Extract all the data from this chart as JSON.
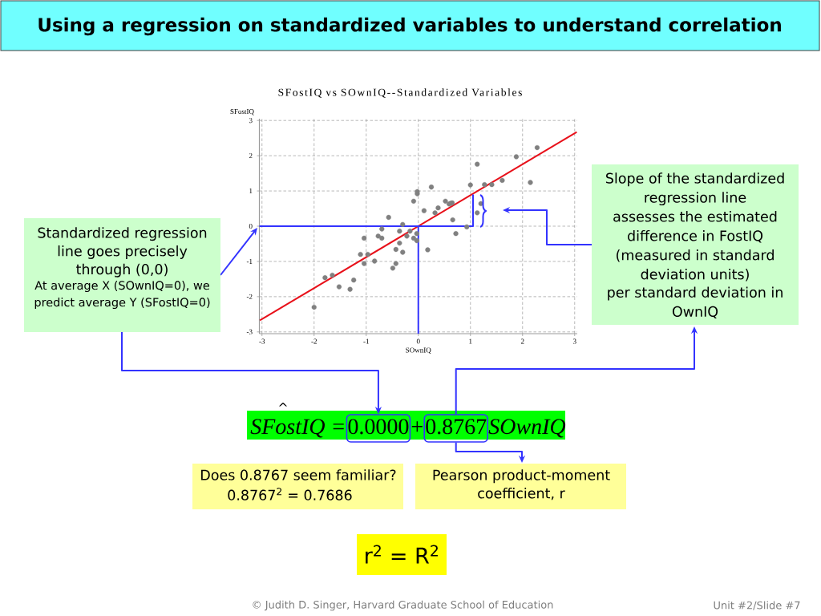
{
  "chart_data": {
    "type": "scatter",
    "title": "Using a regression on standardized variables to understand correlation",
    "subtitle": "SFostIQ vs SOwnIQ--Standardized Variables",
    "xlabel": "SOwnIQ",
    "ylabel": "SFostIQ",
    "series": [
      {
        "type": "scatter",
        "color": "#808080",
        "marker": "circle",
        "x": [
          -2.0,
          -1.79,
          -1.65,
          -1.52,
          -1.31,
          -1.24,
          -1.11,
          -1.04,
          -1.04,
          -0.97,
          -0.84,
          -0.77,
          -0.7,
          -0.7,
          -0.57,
          -0.49,
          -0.43,
          -0.43,
          -0.36,
          -0.36,
          -0.3,
          -0.3,
          -0.22,
          -0.16,
          -0.09,
          -0.09,
          -0.03,
          -0.03,
          -0.02,
          -0.02,
          0.11,
          0.18,
          0.25,
          0.32,
          0.38,
          0.52,
          0.59,
          0.62,
          0.65,
          0.66,
          0.72,
          0.93,
          1.0,
          1.13,
          1.13,
          1.2,
          1.27,
          1.41,
          1.61,
          1.88,
          2.15,
          2.28
        ],
        "values": [
          -2.3,
          -1.46,
          -1.39,
          -1.72,
          -1.79,
          -1.53,
          -0.8,
          -0.34,
          -1.06,
          -0.8,
          -0.99,
          -0.28,
          -0.08,
          -0.34,
          0.25,
          -1.19,
          -0.66,
          -1.06,
          -0.14,
          -0.48,
          -0.74,
          0.05,
          -0.28,
          -0.14,
          0.71,
          -0.34,
          -0.21,
          -0.41,
          0.98,
          0.92,
          0.44,
          -0.67,
          1.11,
          0.38,
          0.52,
          0.71,
          0.63,
          0.65,
          0.66,
          0.18,
          -0.21,
          -0.02,
          1.17,
          1.76,
          0.38,
          0.64,
          1.18,
          1.18,
          1.3,
          1.97,
          1.24,
          2.23
        ]
      },
      {
        "type": "line",
        "color": "#e8101a",
        "x": [
          -3.04,
          3.04
        ],
        "values": [
          -2.67,
          2.67
        ]
      },
      {
        "type": "line",
        "color": "#3333ff",
        "x": [
          -3.05,
          1.05,
          1.05
        ],
        "values": [
          0,
          0,
          0.9
        ]
      },
      {
        "type": "line",
        "color": "#3333ff",
        "x": [
          0,
          0
        ],
        "values": [
          0,
          -3.05
        ]
      }
    ],
    "xlim": [
      -3.05,
      3.05
    ],
    "ylim": [
      -3.05,
      3.05
    ],
    "xticks": [
      -3,
      -2,
      -1,
      0,
      1,
      2,
      3
    ],
    "yticks": [
      -3,
      -2,
      -1,
      0,
      1,
      2,
      3
    ],
    "grid": true,
    "annotations": [
      "Standardized regression line goes precisely through (0,0)",
      "At average X (SOwnIQ=0), we predict average Y (SFostIQ=0)",
      "Slope of the standardized regression line",
      "assesses the estimated difference in FostIQ (measured in standard deviation units)",
      "per standard deviation in OwnIQ",
      "^",
      "SFostIQ =",
      "0.0000",
      "+",
      "0.8767",
      "SOwnIQ",
      "Does 0.8767 seem familiar?",
      "0.8767$^{2}$ =  0.7686",
      "Pearson product-moment coefficient, r",
      "r$^{2}$ = R$^{2}$",
      "© Judith D. Singer, Harvard Graduate School of Education",
      "Unit #2/Slide #7"
    ]
  }
}
